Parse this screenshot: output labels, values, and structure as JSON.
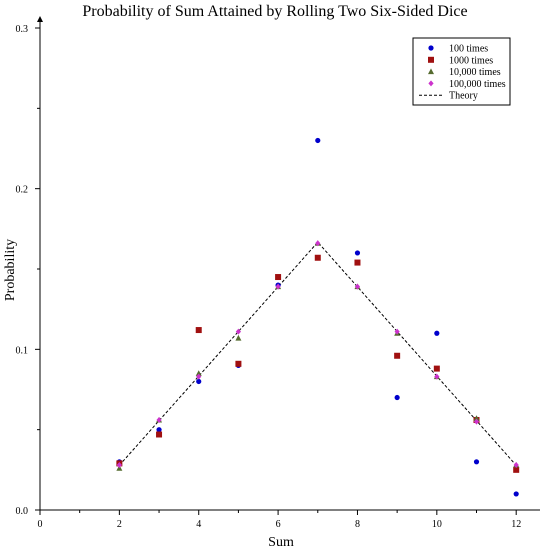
{
  "chart_data": {
    "type": "scatter",
    "title": "Probability of Sum Attained by Rolling Two Six-Sided Dice",
    "xlabel": "Sum",
    "ylabel": "Probability",
    "xlim": [
      0,
      12.6
    ],
    "ylim": [
      0,
      0.3
    ],
    "xticks": [
      0,
      2,
      4,
      6,
      8,
      10,
      12
    ],
    "xtick_labels": [
      "0",
      "2",
      "4",
      "6",
      "8",
      "10",
      "12"
    ],
    "xminor_ticks": [
      1,
      3,
      5,
      7,
      9,
      11
    ],
    "yticks": [
      0.0,
      0.1,
      0.2,
      0.3
    ],
    "ytick_labels": [
      "0.0",
      "0.1",
      "0.2",
      "0.3"
    ],
    "yminor_ticks": [
      0.05,
      0.15,
      0.25
    ],
    "grid": false,
    "legend_position": "top-right",
    "x": [
      2,
      3,
      4,
      5,
      6,
      7,
      8,
      9,
      10,
      11,
      12
    ],
    "series": [
      {
        "name": "100 times",
        "marker": "circle",
        "color": "#0000cc",
        "values": [
          0.03,
          0.05,
          0.08,
          0.09,
          0.14,
          0.23,
          0.16,
          0.07,
          0.11,
          0.03,
          0.01
        ]
      },
      {
        "name": "1000 times",
        "marker": "square",
        "color": "#a01010",
        "values": [
          0.029,
          0.047,
          0.112,
          0.091,
          0.145,
          0.157,
          0.154,
          0.096,
          0.088,
          0.056,
          0.025
        ]
      },
      {
        "name": "10,000 times",
        "marker": "triangle",
        "color": "#556b2f",
        "values": [
          0.026,
          0.056,
          0.085,
          0.107,
          0.139,
          0.166,
          0.139,
          0.11,
          0.083,
          0.057,
          0.028
        ]
      },
      {
        "name": "100,000 times",
        "marker": "diamond",
        "color": "#cc33cc",
        "values": [
          0.028,
          0.056,
          0.083,
          0.111,
          0.139,
          0.166,
          0.139,
          0.111,
          0.083,
          0.055,
          0.028
        ]
      },
      {
        "name": "Theory",
        "marker": "dashed-line",
        "color": "#000000",
        "values": [
          0.0278,
          0.0556,
          0.0833,
          0.1111,
          0.1389,
          0.1667,
          0.1389,
          0.1111,
          0.0833,
          0.0556,
          0.0278
        ]
      }
    ]
  }
}
